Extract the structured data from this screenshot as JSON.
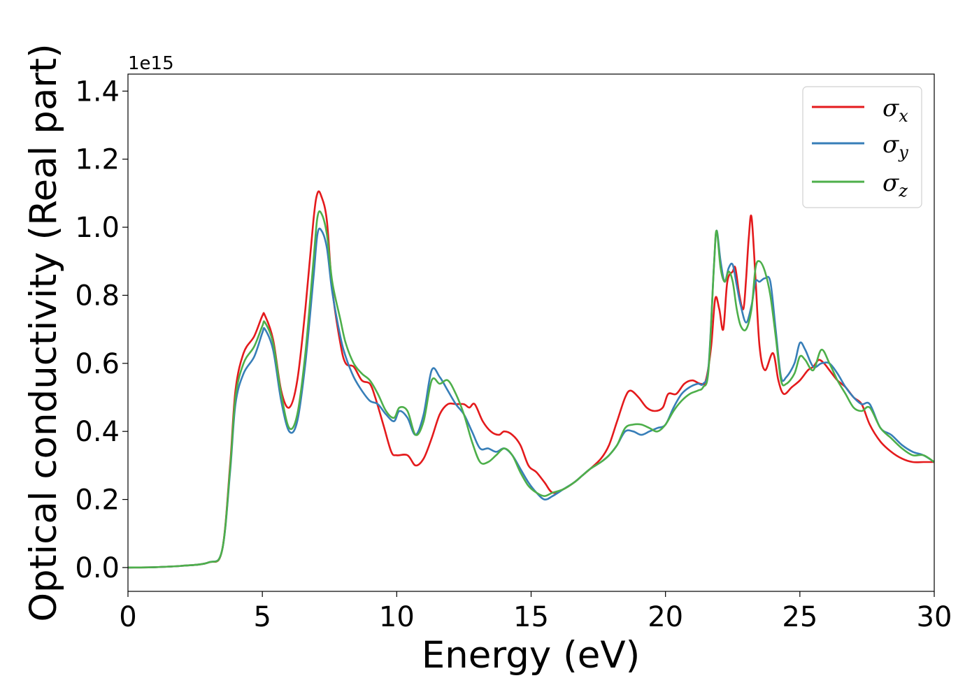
{
  "chart_data": {
    "type": "line",
    "title": "",
    "xlabel": "Energy (eV)",
    "ylabel": "Optical conductivity (Real part)",
    "y_offset_label": "1e15",
    "xlim": [
      0,
      30
    ],
    "ylim": [
      -0.07,
      1.45
    ],
    "xticks": [
      0,
      5,
      10,
      15,
      20,
      25,
      30
    ],
    "xtick_labels": [
      "0",
      "5",
      "10",
      "15",
      "20",
      "25",
      "30"
    ],
    "yticks": [
      0.0,
      0.2,
      0.4,
      0.6,
      0.8,
      1.0,
      1.2,
      1.4
    ],
    "ytick_labels": [
      "0.0",
      "0.2",
      "0.4",
      "0.6",
      "0.8",
      "1.0",
      "1.2",
      "1.4"
    ],
    "grid": false,
    "legend_position": "top-right",
    "series": [
      {
        "name": "σx",
        "symbol": "σ",
        "subscript": "x",
        "color": "#e41a1c",
        "x": [
          0,
          1,
          2,
          3,
          3.5,
          3.8,
          4.0,
          4.3,
          4.7,
          5.0,
          5.1,
          5.4,
          5.7,
          6.0,
          6.3,
          6.6,
          6.9,
          7.05,
          7.2,
          7.4,
          7.6,
          7.9,
          8.1,
          8.4,
          8.7,
          9.0,
          9.2,
          9.5,
          9.8,
          10.0,
          10.4,
          10.7,
          11.0,
          11.3,
          11.6,
          11.9,
          12.2,
          12.5,
          12.7,
          12.9,
          13.2,
          13.5,
          13.8,
          14.0,
          14.3,
          14.6,
          14.9,
          15.2,
          15.5,
          15.8,
          16.2,
          16.6,
          16.9,
          17.2,
          17.6,
          17.9,
          18.2,
          18.5,
          18.7,
          19.0,
          19.3,
          19.6,
          19.9,
          20.1,
          20.4,
          20.7,
          21.0,
          21.3,
          21.5,
          21.7,
          21.85,
          22.0,
          22.15,
          22.3,
          22.5,
          22.6,
          22.75,
          22.9,
          23.0,
          23.1,
          23.2,
          23.35,
          23.5,
          23.7,
          24.0,
          24.2,
          24.4,
          24.7,
          25.0,
          25.3,
          25.5,
          25.7,
          25.9,
          26.1,
          26.4,
          26.7,
          27.0,
          27.3,
          27.6,
          28.0,
          28.4,
          28.8,
          29.2,
          29.6,
          30.0
        ],
        "y": [
          0,
          0.001,
          0.005,
          0.015,
          0.05,
          0.3,
          0.52,
          0.63,
          0.68,
          0.74,
          0.74,
          0.67,
          0.52,
          0.47,
          0.55,
          0.76,
          1.02,
          1.1,
          1.09,
          1.02,
          0.82,
          0.66,
          0.6,
          0.59,
          0.55,
          0.54,
          0.5,
          0.42,
          0.34,
          0.33,
          0.33,
          0.3,
          0.32,
          0.38,
          0.45,
          0.48,
          0.48,
          0.48,
          0.47,
          0.48,
          0.43,
          0.4,
          0.39,
          0.4,
          0.39,
          0.36,
          0.3,
          0.28,
          0.25,
          0.22,
          0.23,
          0.25,
          0.27,
          0.29,
          0.32,
          0.36,
          0.43,
          0.5,
          0.52,
          0.5,
          0.47,
          0.46,
          0.47,
          0.51,
          0.51,
          0.54,
          0.55,
          0.54,
          0.55,
          0.65,
          0.79,
          0.76,
          0.7,
          0.84,
          0.87,
          0.88,
          0.8,
          0.76,
          0.85,
          0.97,
          1.03,
          0.85,
          0.65,
          0.58,
          0.63,
          0.55,
          0.51,
          0.53,
          0.55,
          0.58,
          0.59,
          0.61,
          0.6,
          0.58,
          0.55,
          0.53,
          0.5,
          0.48,
          0.42,
          0.37,
          0.34,
          0.32,
          0.31,
          0.31,
          0.31
        ]
      },
      {
        "name": "σy",
        "symbol": "σ",
        "subscript": "y",
        "color": "#377eb8",
        "x": [
          0,
          1,
          2,
          3,
          3.5,
          3.8,
          4.0,
          4.3,
          4.7,
          5.0,
          5.1,
          5.4,
          5.7,
          6.0,
          6.3,
          6.6,
          6.9,
          7.05,
          7.2,
          7.4,
          7.6,
          7.9,
          8.1,
          8.4,
          8.7,
          9.0,
          9.3,
          9.6,
          9.9,
          10.1,
          10.4,
          10.7,
          11.0,
          11.3,
          11.6,
          11.9,
          12.2,
          12.5,
          12.8,
          13.1,
          13.4,
          13.7,
          14.0,
          14.3,
          14.6,
          14.9,
          15.2,
          15.5,
          15.8,
          16.2,
          16.6,
          16.9,
          17.2,
          17.6,
          17.9,
          18.2,
          18.5,
          18.8,
          19.1,
          19.4,
          19.7,
          20.0,
          20.3,
          20.6,
          20.9,
          21.2,
          21.4,
          21.6,
          21.8,
          21.9,
          22.05,
          22.2,
          22.35,
          22.5,
          22.65,
          22.8,
          23.0,
          23.2,
          23.35,
          23.5,
          23.7,
          23.9,
          24.1,
          24.3,
          24.5,
          24.8,
          25.0,
          25.2,
          25.5,
          25.8,
          26.1,
          26.4,
          26.7,
          27.0,
          27.3,
          27.6,
          28.0,
          28.4,
          28.8,
          29.2,
          29.6,
          30.0
        ],
        "y": [
          0,
          0.001,
          0.005,
          0.015,
          0.05,
          0.28,
          0.48,
          0.57,
          0.62,
          0.69,
          0.7,
          0.64,
          0.49,
          0.4,
          0.43,
          0.6,
          0.85,
          0.98,
          0.99,
          0.94,
          0.81,
          0.68,
          0.62,
          0.56,
          0.52,
          0.49,
          0.48,
          0.45,
          0.43,
          0.46,
          0.44,
          0.39,
          0.45,
          0.58,
          0.56,
          0.52,
          0.48,
          0.45,
          0.4,
          0.35,
          0.35,
          0.34,
          0.35,
          0.33,
          0.29,
          0.25,
          0.22,
          0.2,
          0.21,
          0.23,
          0.25,
          0.27,
          0.29,
          0.31,
          0.33,
          0.36,
          0.4,
          0.4,
          0.39,
          0.4,
          0.41,
          0.42,
          0.47,
          0.51,
          0.53,
          0.54,
          0.54,
          0.59,
          0.88,
          0.99,
          0.9,
          0.84,
          0.88,
          0.89,
          0.83,
          0.77,
          0.72,
          0.77,
          0.84,
          0.84,
          0.85,
          0.84,
          0.7,
          0.56,
          0.56,
          0.6,
          0.66,
          0.64,
          0.59,
          0.6,
          0.6,
          0.57,
          0.53,
          0.5,
          0.48,
          0.48,
          0.41,
          0.39,
          0.36,
          0.34,
          0.33,
          0.31
        ]
      },
      {
        "name": "σz",
        "symbol": "σ",
        "subscript": "z",
        "color": "#4daf4a",
        "x": [
          0,
          1,
          2,
          3,
          3.5,
          3.8,
          4.0,
          4.3,
          4.7,
          5.0,
          5.1,
          5.4,
          5.7,
          6.0,
          6.3,
          6.6,
          6.9,
          7.05,
          7.2,
          7.4,
          7.6,
          7.9,
          8.1,
          8.4,
          8.7,
          9.0,
          9.3,
          9.6,
          9.9,
          10.1,
          10.4,
          10.7,
          11.0,
          11.3,
          11.6,
          11.9,
          12.2,
          12.5,
          12.8,
          13.1,
          13.4,
          13.7,
          14.0,
          14.3,
          14.6,
          14.9,
          15.2,
          15.5,
          15.8,
          16.2,
          16.6,
          16.9,
          17.2,
          17.6,
          17.9,
          18.2,
          18.5,
          18.8,
          19.1,
          19.4,
          19.7,
          20.0,
          20.3,
          20.6,
          20.9,
          21.2,
          21.4,
          21.6,
          21.8,
          21.9,
          22.05,
          22.2,
          22.35,
          22.5,
          22.65,
          22.8,
          23.0,
          23.2,
          23.35,
          23.5,
          23.7,
          23.9,
          24.1,
          24.3,
          24.5,
          24.8,
          25.0,
          25.2,
          25.5,
          25.8,
          26.1,
          26.4,
          26.7,
          27.0,
          27.3,
          27.6,
          28.0,
          28.4,
          28.8,
          29.2,
          29.6,
          30.0
        ],
        "y": [
          0,
          0.001,
          0.005,
          0.015,
          0.05,
          0.29,
          0.5,
          0.6,
          0.65,
          0.71,
          0.72,
          0.66,
          0.51,
          0.41,
          0.45,
          0.63,
          0.9,
          1.03,
          1.04,
          0.98,
          0.84,
          0.73,
          0.66,
          0.6,
          0.57,
          0.55,
          0.51,
          0.46,
          0.44,
          0.47,
          0.46,
          0.39,
          0.43,
          0.55,
          0.54,
          0.55,
          0.51,
          0.45,
          0.37,
          0.31,
          0.31,
          0.33,
          0.35,
          0.33,
          0.28,
          0.24,
          0.22,
          0.21,
          0.22,
          0.23,
          0.25,
          0.27,
          0.29,
          0.31,
          0.33,
          0.36,
          0.41,
          0.42,
          0.42,
          0.41,
          0.4,
          0.42,
          0.46,
          0.49,
          0.51,
          0.52,
          0.53,
          0.58,
          0.88,
          0.99,
          0.88,
          0.84,
          0.87,
          0.84,
          0.76,
          0.71,
          0.7,
          0.76,
          0.88,
          0.9,
          0.87,
          0.8,
          0.68,
          0.55,
          0.54,
          0.57,
          0.62,
          0.61,
          0.58,
          0.64,
          0.6,
          0.55,
          0.51,
          0.47,
          0.46,
          0.47,
          0.41,
          0.38,
          0.35,
          0.33,
          0.33,
          0.31
        ]
      }
    ]
  }
}
